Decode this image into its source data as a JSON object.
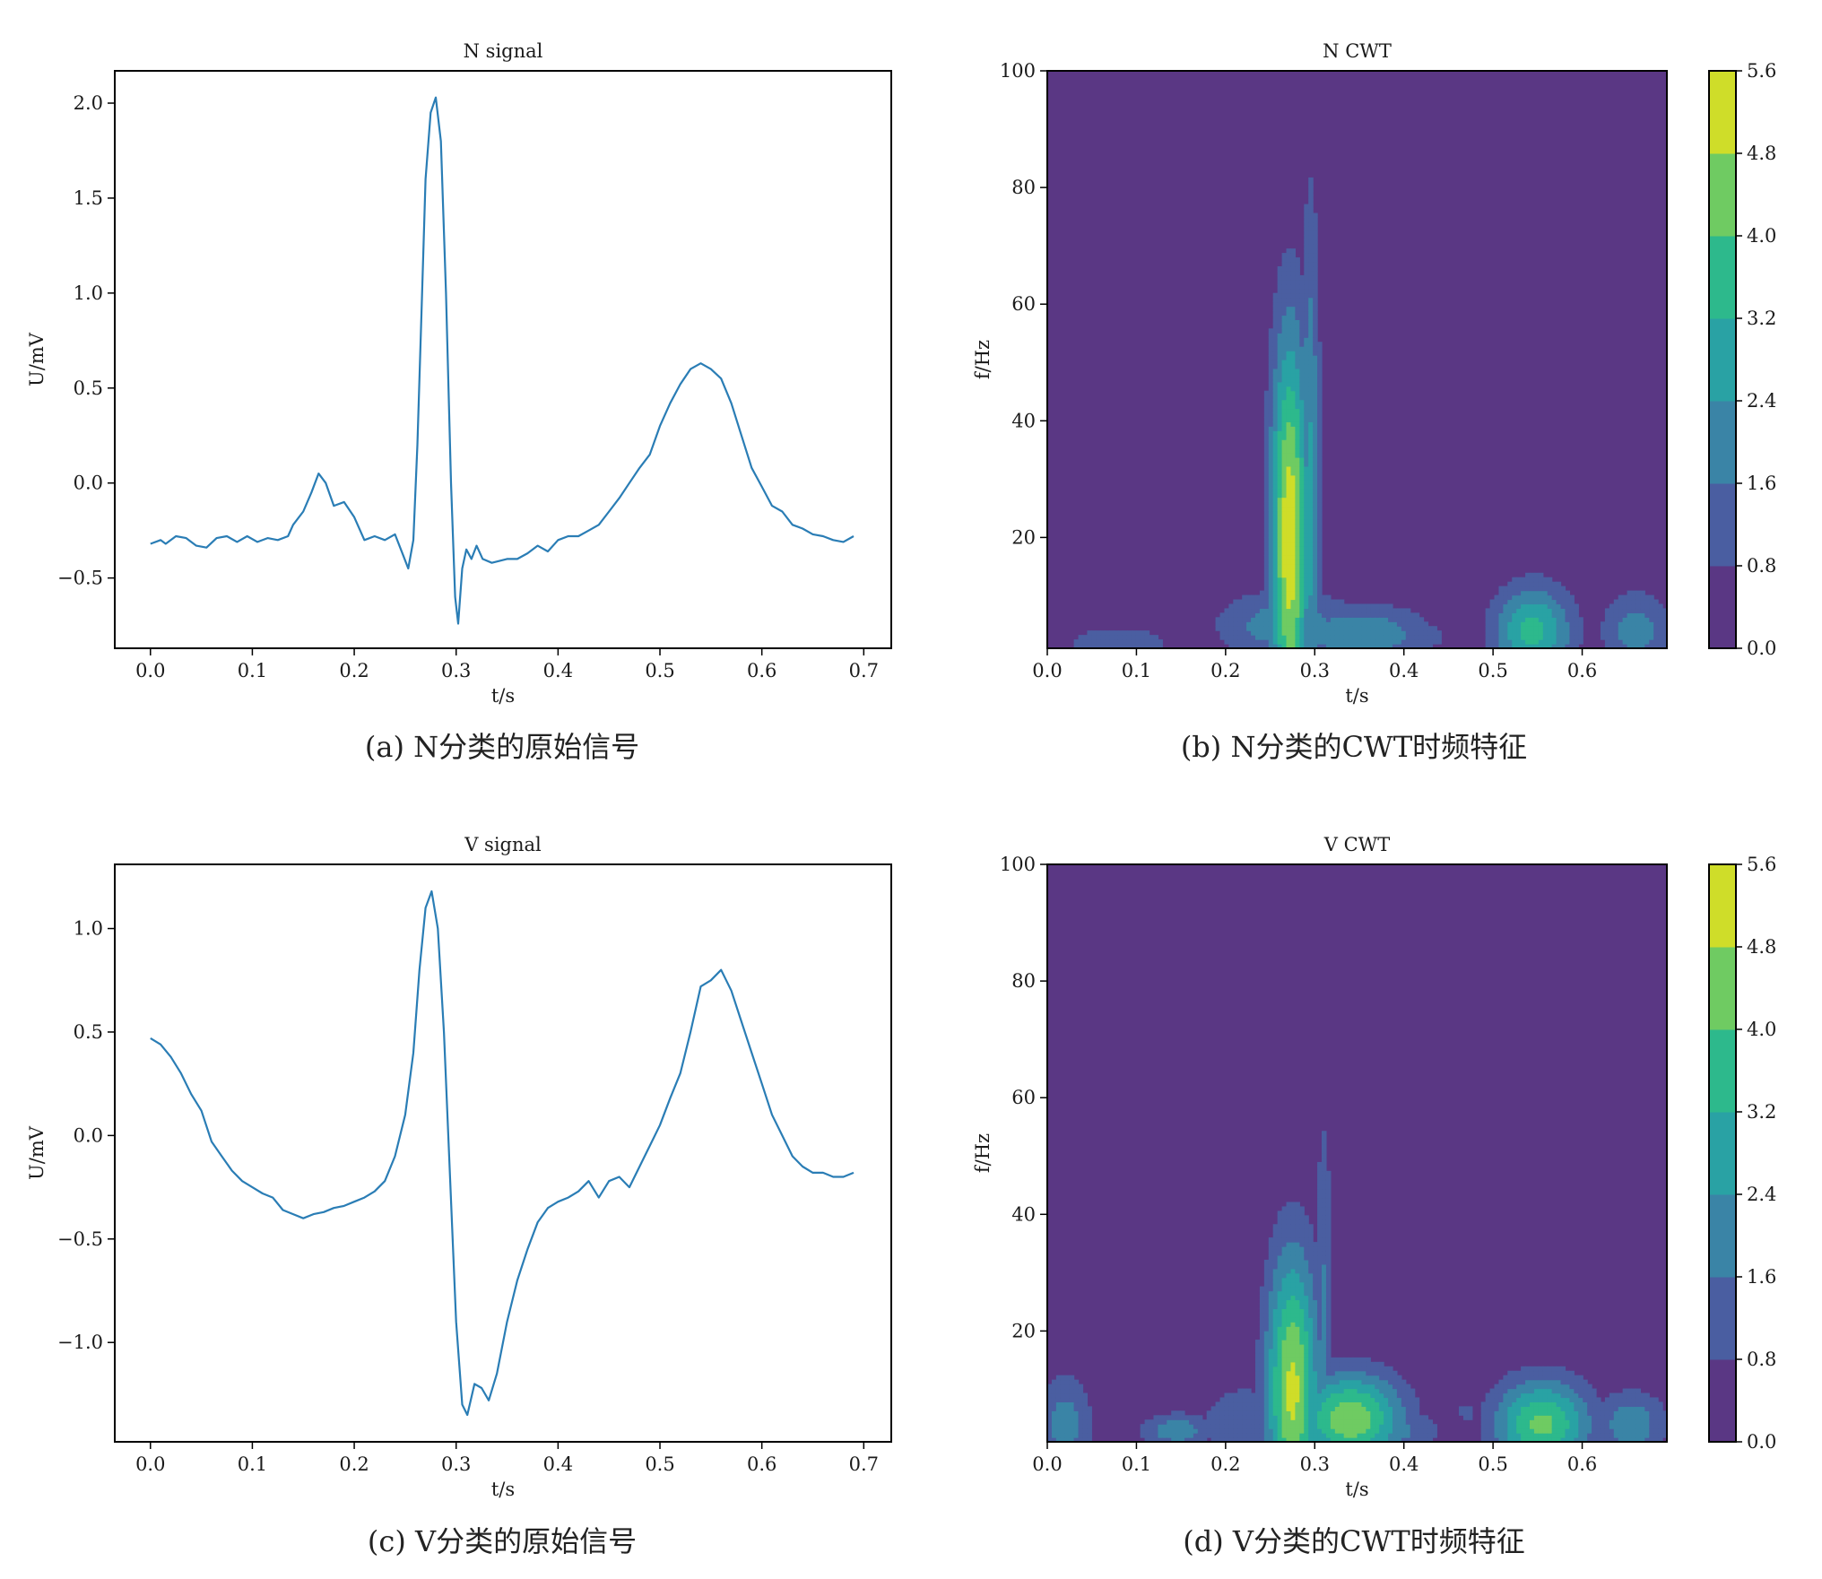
{
  "chart_data": [
    {
      "id": "n_signal",
      "type": "line",
      "title": "N signal",
      "xlabel": "t/s",
      "ylabel": "U/mV",
      "caption": "(a) N分类的原始信号",
      "xlim": [
        -0.035,
        0.727
      ],
      "ylim": [
        -0.87,
        2.17
      ],
      "xticks": [
        {
          "v": 0.0,
          "label": "0.0"
        },
        {
          "v": 0.1,
          "label": "0.1"
        },
        {
          "v": 0.2,
          "label": "0.2"
        },
        {
          "v": 0.3,
          "label": "0.3"
        },
        {
          "v": 0.4,
          "label": "0.4"
        },
        {
          "v": 0.5,
          "label": "0.5"
        },
        {
          "v": 0.6,
          "label": "0.6"
        },
        {
          "v": 0.7,
          "label": "0.7"
        }
      ],
      "yticks": [
        {
          "v": -0.5,
          "label": "−0.5"
        },
        {
          "v": 0.0,
          "label": "0.0"
        },
        {
          "v": 0.5,
          "label": "0.5"
        },
        {
          "v": 1.0,
          "label": "1.0"
        },
        {
          "v": 1.5,
          "label": "1.5"
        },
        {
          "v": 2.0,
          "label": "2.0"
        }
      ],
      "color": "#2a7db5",
      "points": [
        [
          0.0,
          -0.32
        ],
        [
          0.01,
          -0.3
        ],
        [
          0.015,
          -0.32
        ],
        [
          0.025,
          -0.28
        ],
        [
          0.035,
          -0.29
        ],
        [
          0.045,
          -0.33
        ],
        [
          0.055,
          -0.34
        ],
        [
          0.065,
          -0.29
        ],
        [
          0.075,
          -0.28
        ],
        [
          0.085,
          -0.31
        ],
        [
          0.095,
          -0.28
        ],
        [
          0.105,
          -0.31
        ],
        [
          0.115,
          -0.29
        ],
        [
          0.125,
          -0.3
        ],
        [
          0.135,
          -0.28
        ],
        [
          0.14,
          -0.22
        ],
        [
          0.15,
          -0.15
        ],
        [
          0.158,
          -0.05
        ],
        [
          0.165,
          0.05
        ],
        [
          0.172,
          0.0
        ],
        [
          0.18,
          -0.12
        ],
        [
          0.19,
          -0.1
        ],
        [
          0.2,
          -0.18
        ],
        [
          0.21,
          -0.3
        ],
        [
          0.22,
          -0.28
        ],
        [
          0.23,
          -0.3
        ],
        [
          0.24,
          -0.27
        ],
        [
          0.248,
          -0.38
        ],
        [
          0.253,
          -0.45
        ],
        [
          0.258,
          -0.3
        ],
        [
          0.262,
          0.2
        ],
        [
          0.266,
          0.9
        ],
        [
          0.27,
          1.6
        ],
        [
          0.275,
          1.95
        ],
        [
          0.28,
          2.03
        ],
        [
          0.285,
          1.8
        ],
        [
          0.29,
          1.0
        ],
        [
          0.295,
          0.0
        ],
        [
          0.299,
          -0.6
        ],
        [
          0.302,
          -0.74
        ],
        [
          0.306,
          -0.45
        ],
        [
          0.31,
          -0.35
        ],
        [
          0.315,
          -0.4
        ],
        [
          0.32,
          -0.33
        ],
        [
          0.326,
          -0.4
        ],
        [
          0.335,
          -0.42
        ],
        [
          0.35,
          -0.4
        ],
        [
          0.36,
          -0.4
        ],
        [
          0.37,
          -0.37
        ],
        [
          0.38,
          -0.33
        ],
        [
          0.39,
          -0.36
        ],
        [
          0.4,
          -0.3
        ],
        [
          0.41,
          -0.28
        ],
        [
          0.42,
          -0.28
        ],
        [
          0.43,
          -0.25
        ],
        [
          0.44,
          -0.22
        ],
        [
          0.45,
          -0.15
        ],
        [
          0.46,
          -0.08
        ],
        [
          0.47,
          0.0
        ],
        [
          0.48,
          0.08
        ],
        [
          0.49,
          0.15
        ],
        [
          0.5,
          0.3
        ],
        [
          0.51,
          0.42
        ],
        [
          0.52,
          0.52
        ],
        [
          0.53,
          0.6
        ],
        [
          0.54,
          0.63
        ],
        [
          0.55,
          0.6
        ],
        [
          0.56,
          0.55
        ],
        [
          0.57,
          0.42
        ],
        [
          0.58,
          0.25
        ],
        [
          0.59,
          0.08
        ],
        [
          0.6,
          -0.02
        ],
        [
          0.61,
          -0.12
        ],
        [
          0.62,
          -0.15
        ],
        [
          0.63,
          -0.22
        ],
        [
          0.64,
          -0.24
        ],
        [
          0.65,
          -0.27
        ],
        [
          0.66,
          -0.28
        ],
        [
          0.67,
          -0.3
        ],
        [
          0.68,
          -0.31
        ],
        [
          0.69,
          -0.28
        ]
      ]
    },
    {
      "id": "n_cwt",
      "type": "heatmap",
      "title": "N CWT",
      "xlabel": "t/s",
      "ylabel": "f/Hz",
      "caption": "(b) N分类的CWT时频特征",
      "xlim": [
        0.0,
        0.695
      ],
      "ylim": [
        1,
        100
      ],
      "xticks": [
        {
          "v": 0.0,
          "label": "0.0"
        },
        {
          "v": 0.1,
          "label": "0.1"
        },
        {
          "v": 0.2,
          "label": "0.2"
        },
        {
          "v": 0.3,
          "label": "0.3"
        },
        {
          "v": 0.4,
          "label": "0.4"
        },
        {
          "v": 0.5,
          "label": "0.5"
        },
        {
          "v": 0.6,
          "label": "0.6"
        }
      ],
      "yticks": [
        {
          "v": 20,
          "label": "20"
        },
        {
          "v": 40,
          "label": "40"
        },
        {
          "v": 60,
          "label": "60"
        },
        {
          "v": 80,
          "label": "80"
        },
        {
          "v": 100,
          "label": "100"
        }
      ],
      "colorbar": {
        "levels": [
          0.0,
          0.8,
          1.6,
          2.4,
          3.2,
          4.0,
          4.8,
          5.6
        ],
        "labels": [
          "0.0",
          "0.8",
          "1.6",
          "2.4",
          "3.2",
          "4.0",
          "4.8",
          "5.6"
        ],
        "colors": [
          "#5a3784",
          "#4a5ea1",
          "#3a84a6",
          "#29a2a4",
          "#2db98c",
          "#6fcb62",
          "#cfdd29"
        ]
      },
      "blobs": [
        {
          "t": 0.272,
          "f": 20,
          "dt": 0.022,
          "df": 36,
          "peak": 5.4
        },
        {
          "t": 0.295,
          "f": 25,
          "dt": 0.011,
          "df": 52,
          "peak": 2.6
        },
        {
          "t": 0.27,
          "f": 5,
          "dt": 0.08,
          "df": 6,
          "peak": 2.2
        },
        {
          "t": 0.35,
          "f": 3.5,
          "dt": 0.08,
          "df": 5,
          "peak": 2.4
        },
        {
          "t": 0.4,
          "f": 3,
          "dt": 0.06,
          "df": 4,
          "peak": 1.3
        },
        {
          "t": 0.545,
          "f": 4,
          "dt": 0.045,
          "df": 8,
          "peak": 3.5
        },
        {
          "t": 0.66,
          "f": 4,
          "dt": 0.04,
          "df": 7,
          "peak": 2.0
        },
        {
          "t": 0.08,
          "f": 2,
          "dt": 0.08,
          "df": 3.5,
          "peak": 1.2
        }
      ]
    },
    {
      "id": "v_signal",
      "type": "line",
      "title": "V signal",
      "xlabel": "t/s",
      "ylabel": "U/mV",
      "caption": "(c) V分类的原始信号",
      "xlim": [
        -0.035,
        0.727
      ],
      "ylim": [
        -1.48,
        1.31
      ],
      "xticks": [
        {
          "v": 0.0,
          "label": "0.0"
        },
        {
          "v": 0.1,
          "label": "0.1"
        },
        {
          "v": 0.2,
          "label": "0.2"
        },
        {
          "v": 0.3,
          "label": "0.3"
        },
        {
          "v": 0.4,
          "label": "0.4"
        },
        {
          "v": 0.5,
          "label": "0.5"
        },
        {
          "v": 0.6,
          "label": "0.6"
        },
        {
          "v": 0.7,
          "label": "0.7"
        }
      ],
      "yticks": [
        {
          "v": -1.0,
          "label": "−1.0"
        },
        {
          "v": -0.5,
          "label": "−0.5"
        },
        {
          "v": 0.0,
          "label": "0.0"
        },
        {
          "v": 0.5,
          "label": "0.5"
        },
        {
          "v": 1.0,
          "label": "1.0"
        }
      ],
      "color": "#2a7db5",
      "points": [
        [
          0.0,
          0.47
        ],
        [
          0.01,
          0.44
        ],
        [
          0.02,
          0.38
        ],
        [
          0.03,
          0.3
        ],
        [
          0.04,
          0.2
        ],
        [
          0.05,
          0.12
        ],
        [
          0.06,
          -0.03
        ],
        [
          0.07,
          -0.1
        ],
        [
          0.08,
          -0.17
        ],
        [
          0.09,
          -0.22
        ],
        [
          0.1,
          -0.25
        ],
        [
          0.11,
          -0.28
        ],
        [
          0.12,
          -0.3
        ],
        [
          0.13,
          -0.36
        ],
        [
          0.14,
          -0.38
        ],
        [
          0.15,
          -0.4
        ],
        [
          0.16,
          -0.38
        ],
        [
          0.17,
          -0.37
        ],
        [
          0.18,
          -0.35
        ],
        [
          0.19,
          -0.34
        ],
        [
          0.2,
          -0.32
        ],
        [
          0.21,
          -0.3
        ],
        [
          0.22,
          -0.27
        ],
        [
          0.23,
          -0.22
        ],
        [
          0.24,
          -0.1
        ],
        [
          0.25,
          0.1
        ],
        [
          0.258,
          0.4
        ],
        [
          0.264,
          0.8
        ],
        [
          0.27,
          1.1
        ],
        [
          0.276,
          1.18
        ],
        [
          0.282,
          1.0
        ],
        [
          0.288,
          0.5
        ],
        [
          0.294,
          -0.2
        ],
        [
          0.3,
          -0.9
        ],
        [
          0.306,
          -1.3
        ],
        [
          0.311,
          -1.35
        ],
        [
          0.318,
          -1.2
        ],
        [
          0.325,
          -1.22
        ],
        [
          0.332,
          -1.28
        ],
        [
          0.34,
          -1.15
        ],
        [
          0.35,
          -0.9
        ],
        [
          0.36,
          -0.7
        ],
        [
          0.37,
          -0.55
        ],
        [
          0.38,
          -0.42
        ],
        [
          0.39,
          -0.35
        ],
        [
          0.4,
          -0.32
        ],
        [
          0.41,
          -0.3
        ],
        [
          0.42,
          -0.27
        ],
        [
          0.43,
          -0.22
        ],
        [
          0.44,
          -0.3
        ],
        [
          0.45,
          -0.22
        ],
        [
          0.46,
          -0.2
        ],
        [
          0.47,
          -0.25
        ],
        [
          0.48,
          -0.15
        ],
        [
          0.49,
          -0.05
        ],
        [
          0.5,
          0.05
        ],
        [
          0.51,
          0.18
        ],
        [
          0.52,
          0.3
        ],
        [
          0.53,
          0.5
        ],
        [
          0.54,
          0.72
        ],
        [
          0.55,
          0.75
        ],
        [
          0.56,
          0.8
        ],
        [
          0.57,
          0.7
        ],
        [
          0.58,
          0.55
        ],
        [
          0.59,
          0.4
        ],
        [
          0.6,
          0.25
        ],
        [
          0.61,
          0.1
        ],
        [
          0.62,
          0.0
        ],
        [
          0.63,
          -0.1
        ],
        [
          0.64,
          -0.15
        ],
        [
          0.65,
          -0.18
        ],
        [
          0.66,
          -0.18
        ],
        [
          0.67,
          -0.2
        ],
        [
          0.68,
          -0.2
        ],
        [
          0.69,
          -0.18
        ]
      ]
    },
    {
      "id": "v_cwt",
      "type": "heatmap",
      "title": "V CWT",
      "xlabel": "t/s",
      "ylabel": "f/Hz",
      "caption": "(d) V分类的CWT时频特征",
      "xlim": [
        0.0,
        0.695
      ],
      "ylim": [
        1,
        100
      ],
      "xticks": [
        {
          "v": 0.0,
          "label": "0.0"
        },
        {
          "v": 0.1,
          "label": "0.1"
        },
        {
          "v": 0.2,
          "label": "0.2"
        },
        {
          "v": 0.3,
          "label": "0.3"
        },
        {
          "v": 0.4,
          "label": "0.4"
        },
        {
          "v": 0.5,
          "label": "0.5"
        },
        {
          "v": 0.6,
          "label": "0.6"
        }
      ],
      "yticks": [
        {
          "v": 20,
          "label": "20"
        },
        {
          "v": 40,
          "label": "40"
        },
        {
          "v": 60,
          "label": "60"
        },
        {
          "v": 80,
          "label": "80"
        },
        {
          "v": 100,
          "label": "100"
        }
      ],
      "colorbar": {
        "levels": [
          0.0,
          0.8,
          1.6,
          2.4,
          3.2,
          4.0,
          4.8,
          5.6
        ],
        "labels": [
          "0.0",
          "0.8",
          "1.6",
          "2.4",
          "3.2",
          "4.0",
          "4.8",
          "5.6"
        ],
        "colors": [
          "#5a3784",
          "#4a5ea1",
          "#3a84a6",
          "#29a2a4",
          "#2db98c",
          "#6fcb62",
          "#cfdd29"
        ]
      },
      "blobs": [
        {
          "t": 0.275,
          "f": 10,
          "dt": 0.03,
          "df": 24,
          "peak": 5.0
        },
        {
          "t": 0.31,
          "f": 18,
          "dt": 0.01,
          "df": 40,
          "peak": 1.8
        },
        {
          "t": 0.34,
          "f": 5,
          "dt": 0.06,
          "df": 8,
          "peak": 4.6
        },
        {
          "t": 0.38,
          "f": 3,
          "dt": 0.06,
          "df": 4,
          "peak": 2.0
        },
        {
          "t": 0.22,
          "f": 4,
          "dt": 0.05,
          "df": 7,
          "peak": 1.6
        },
        {
          "t": 0.145,
          "f": 3,
          "dt": 0.04,
          "df": 3,
          "peak": 2.2
        },
        {
          "t": 0.02,
          "f": 4,
          "dt": 0.03,
          "df": 9,
          "peak": 2.0
        },
        {
          "t": 0.555,
          "f": 4,
          "dt": 0.055,
          "df": 8,
          "peak": 4.2
        },
        {
          "t": 0.655,
          "f": 4,
          "dt": 0.04,
          "df": 6,
          "peak": 2.2
        },
        {
          "t": 0.41,
          "f": 7,
          "dt": 0.015,
          "df": 3,
          "peak": 1.0
        },
        {
          "t": 0.47,
          "f": 6,
          "dt": 0.015,
          "df": 3,
          "peak": 1.0
        }
      ]
    }
  ]
}
